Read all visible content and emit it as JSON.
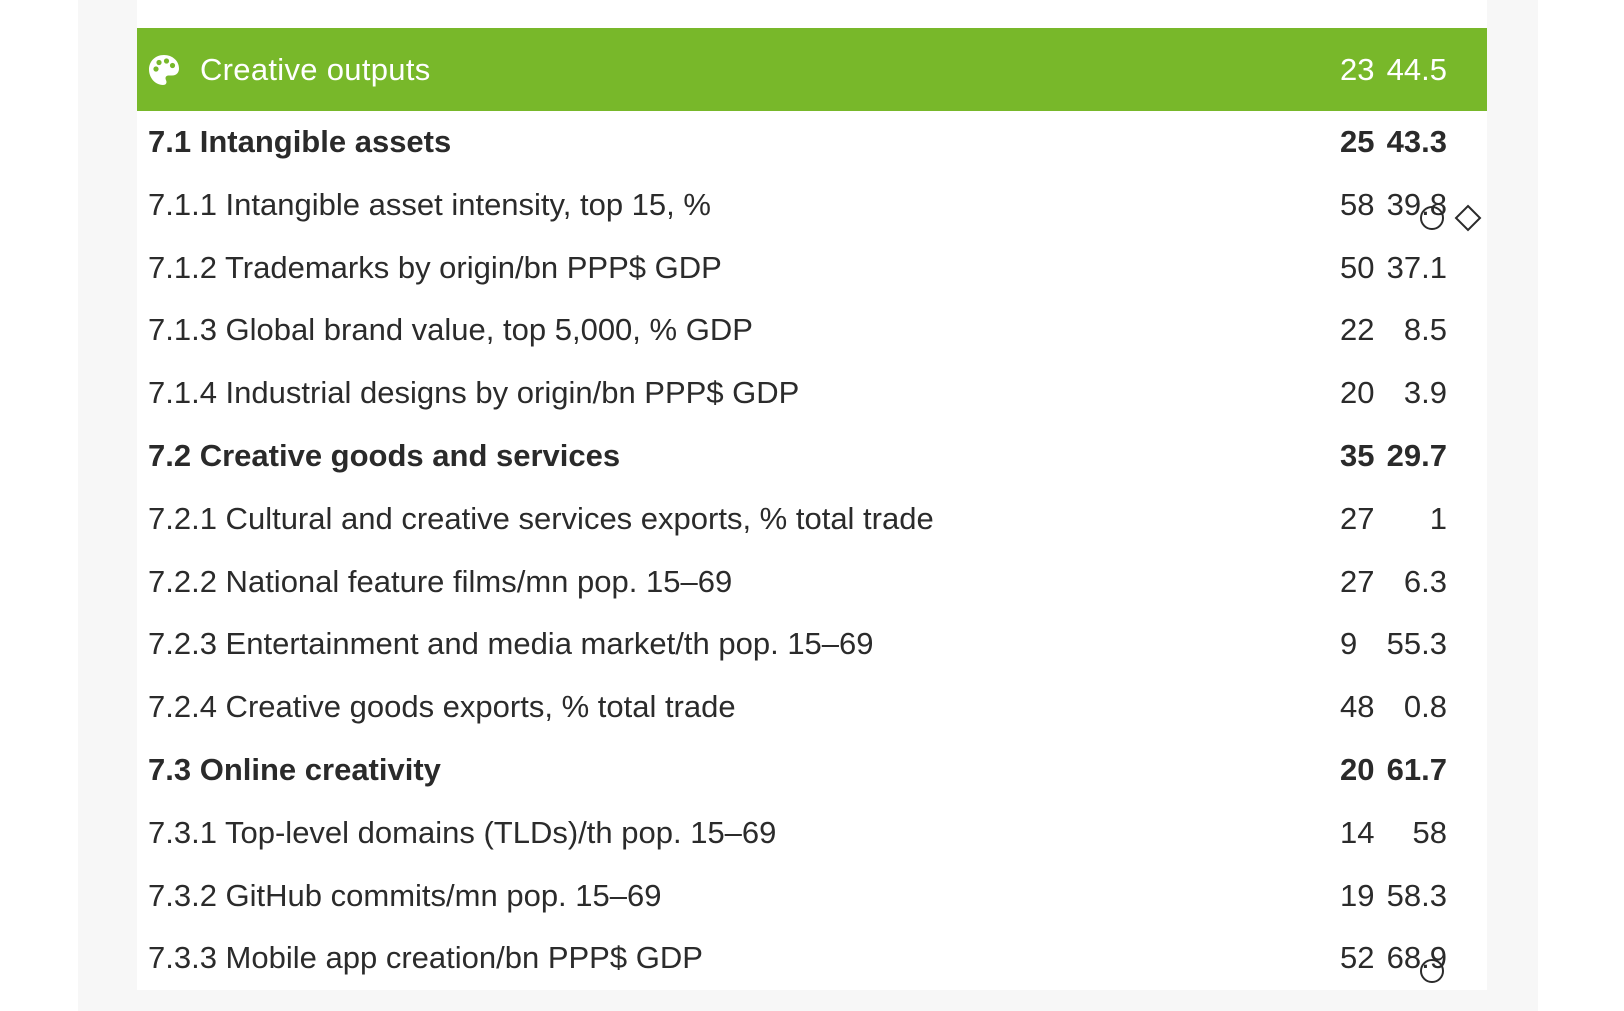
{
  "header": {
    "icon": "palette-icon",
    "title": "Creative outputs",
    "score": "44.5",
    "rank": "23",
    "color": "#78b82a"
  },
  "rows": [
    {
      "label": "7.1 Intangible assets",
      "score": "43.3",
      "rank": "25",
      "bold": true,
      "markers": []
    },
    {
      "label": "7.1.1 Intangible asset intensity, top 15, %",
      "score": "39.8",
      "rank": "58",
      "bold": false,
      "markers": [
        "circle-icon",
        "diamond-icon"
      ]
    },
    {
      "label": "7.1.2 Trademarks by origin/bn PPP$ GDP",
      "score": "37.1",
      "rank": "50",
      "bold": false,
      "markers": []
    },
    {
      "label": "7.1.3 Global brand value, top 5,000, % GDP",
      "score": "8.5",
      "rank": "22",
      "bold": false,
      "markers": []
    },
    {
      "label": "7.1.4 Industrial designs by origin/bn PPP$ GDP",
      "score": "3.9",
      "rank": "20",
      "bold": false,
      "markers": []
    },
    {
      "label": "7.2 Creative goods and services",
      "score": "29.7",
      "rank": "35",
      "bold": true,
      "markers": []
    },
    {
      "label": "7.2.1 Cultural and creative services exports, % total trade",
      "score": "1",
      "rank": "27",
      "bold": false,
      "markers": []
    },
    {
      "label": "7.2.2 National feature films/mn pop. 15–69",
      "score": "6.3",
      "rank": "27",
      "bold": false,
      "markers": []
    },
    {
      "label": "7.2.3 Entertainment and media market/th pop. 15–69",
      "score": "55.3",
      "rank": "9",
      "bold": false,
      "markers": []
    },
    {
      "label": "7.2.4 Creative goods exports, % total trade",
      "score": "0.8",
      "rank": "48",
      "bold": false,
      "markers": []
    },
    {
      "label": "7.3 Online creativity",
      "score": "61.7",
      "rank": "20",
      "bold": true,
      "markers": []
    },
    {
      "label": "7.3.1 Top-level domains (TLDs)/th pop. 15–69",
      "score": "58",
      "rank": "14",
      "bold": false,
      "markers": []
    },
    {
      "label": "7.3.2 GitHub commits/mn pop. 15–69",
      "score": "58.3",
      "rank": "19",
      "bold": false,
      "markers": []
    },
    {
      "label": "7.3.3 Mobile app creation/bn PPP$ GDP",
      "score": "68.9",
      "rank": "52",
      "bold": false,
      "markers": [
        "circle-icon"
      ]
    }
  ]
}
